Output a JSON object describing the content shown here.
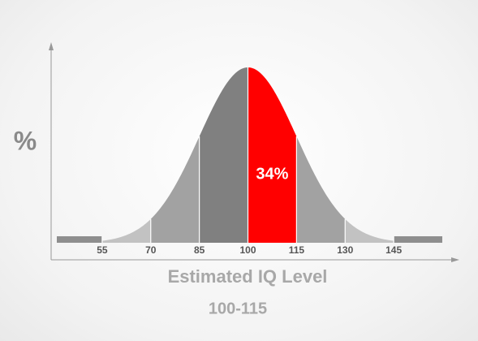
{
  "chart_data": {
    "type": "bell",
    "y_label": "%",
    "x_label": "Estimated IQ Level",
    "subtitle": "100-115",
    "xlim": [
      41,
      160
    ],
    "xticks": [
      55,
      70,
      85,
      100,
      115,
      130,
      145
    ],
    "band_colors": [
      "#c2c2c2",
      "#a2a2a2",
      "#808080",
      "#ff0000",
      "#a2a2a2",
      "#c2c2c2"
    ],
    "tail_color": "#8e8e8e",
    "highlight": {
      "x": [
        100,
        115
      ],
      "value": 34,
      "value_label": "34%"
    }
  }
}
